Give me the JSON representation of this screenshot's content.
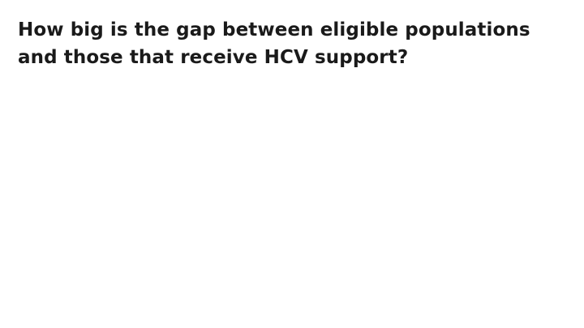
{
  "slide": {
    "title_lines": [
      "How big is the gap between eligible populations",
      "and those that receive HCV support?"
    ]
  }
}
